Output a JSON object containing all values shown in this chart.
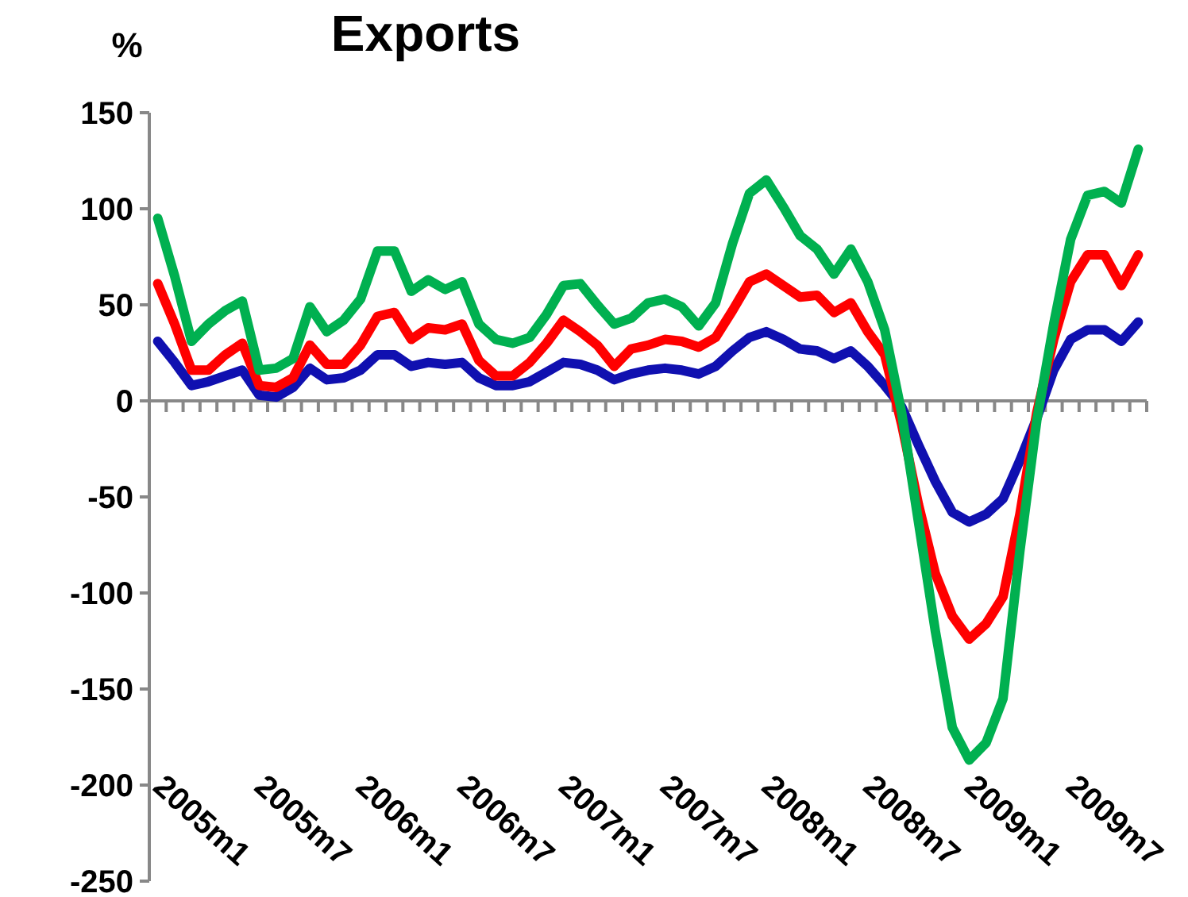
{
  "chart_data": {
    "type": "line",
    "title": "Exports",
    "ylabel": "%",
    "categories": [
      "2005m1",
      null,
      null,
      null,
      null,
      null,
      "2005m7",
      null,
      null,
      null,
      null,
      null,
      "2006m1",
      null,
      null,
      null,
      null,
      null,
      "2006m7",
      null,
      null,
      null,
      null,
      null,
      "2007m1",
      null,
      null,
      null,
      null,
      null,
      "2007m7",
      null,
      null,
      null,
      null,
      null,
      "2008m1",
      null,
      null,
      null,
      null,
      null,
      "2008m7",
      null,
      null,
      null,
      null,
      null,
      "2009m1",
      null,
      null,
      null,
      null,
      null,
      "2009m7",
      null,
      null,
      null,
      null
    ],
    "series": [
      {
        "color": "#1010b0",
        "values": [
          31,
          20,
          8,
          10,
          13,
          16,
          3,
          2,
          7,
          17,
          11,
          12,
          16,
          24,
          24,
          18,
          20,
          19,
          20,
          12,
          8,
          8,
          10,
          15,
          20,
          19,
          16,
          11,
          14,
          16,
          17,
          16,
          14,
          18,
          26,
          33,
          36,
          32,
          27,
          26,
          22,
          26,
          18,
          8,
          -3,
          -23,
          -42,
          -58,
          -63,
          -59,
          -51,
          -31,
          -9,
          16,
          32,
          37,
          37,
          31,
          41
        ]
      },
      {
        "color": "#ff0000",
        "values": [
          61,
          40,
          16,
          16,
          24,
          30,
          8,
          7,
          12,
          29,
          19,
          19,
          29,
          44,
          46,
          32,
          38,
          37,
          40,
          21,
          13,
          13,
          20,
          30,
          42,
          36,
          29,
          18,
          27,
          29,
          32,
          31,
          28,
          33,
          47,
          62,
          66,
          60,
          54,
          55,
          46,
          51,
          36,
          24,
          -12,
          -54,
          -90,
          -112,
          -124,
          -116,
          -102,
          -59,
          -6,
          32,
          62,
          76,
          76,
          60,
          76
        ]
      },
      {
        "color": "#00b050",
        "values": [
          95,
          65,
          31,
          40,
          47,
          52,
          16,
          17,
          22,
          49,
          36,
          42,
          53,
          78,
          78,
          57,
          63,
          58,
          62,
          40,
          32,
          30,
          33,
          45,
          60,
          61,
          50,
          40,
          43,
          51,
          53,
          49,
          39,
          51,
          82,
          108,
          115,
          101,
          86,
          79,
          66,
          79,
          62,
          37,
          -6,
          -63,
          -120,
          -170,
          -187,
          -178,
          -155,
          -78,
          -10,
          40,
          84,
          107,
          109,
          103,
          131
        ]
      }
    ],
    "ylim": [
      -250,
      150
    ],
    "yticks": [
      -250,
      -200,
      -150,
      -100,
      -50,
      0,
      50,
      100,
      150
    ],
    "marker": "none",
    "line_style": "solid"
  }
}
